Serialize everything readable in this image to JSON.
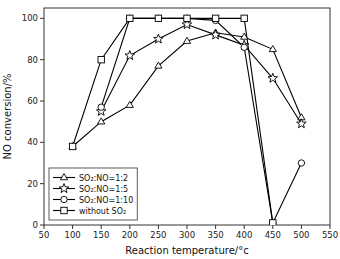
{
  "chart_data": {
    "type": "line",
    "xlabel": "Reaction temperature/°c",
    "ylabel": "NO conversion/%",
    "xlim": [
      50,
      550
    ],
    "ylim": [
      0,
      105
    ],
    "xticks": [
      50,
      100,
      150,
      200,
      250,
      300,
      350,
      400,
      450,
      500,
      550
    ],
    "yticks": [
      0,
      20,
      40,
      60,
      80,
      100
    ],
    "grid": false,
    "legend": "lower left",
    "series": [
      {
        "name": "SO₂:NO=1:2",
        "color": "black",
        "marker": "triangle",
        "x": [
          100,
          150,
          200,
          250,
          300,
          350,
          400,
          450,
          500
        ],
        "values": [
          38,
          50,
          58,
          77,
          89,
          93,
          91,
          85,
          52
        ]
      },
      {
        "name": "SO₂:NO=1:5",
        "color": "black",
        "marker": "star",
        "x": [
          150,
          200,
          250,
          300,
          350,
          400,
          450,
          500
        ],
        "values": [
          55,
          82,
          90,
          97,
          92,
          87,
          71,
          49
        ]
      },
      {
        "name": "SO₂:NO=1:10",
        "color": "black",
        "marker": "circle",
        "x": [
          150,
          200,
          250,
          300,
          350,
          400,
          450,
          500
        ],
        "values": [
          57,
          100,
          100,
          100,
          99,
          86,
          1,
          30
        ]
      },
      {
        "name": "without SO₂",
        "color": "black",
        "marker": "square",
        "x": [
          100,
          150,
          200,
          250,
          300,
          350,
          400,
          450
        ],
        "values": [
          38,
          80,
          100,
          100,
          100,
          100,
          100,
          1
        ]
      }
    ]
  }
}
